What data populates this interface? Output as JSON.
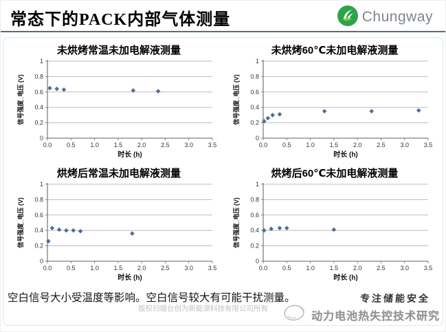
{
  "header": {
    "title": "常态下的PACK内部气体测量",
    "brand": "Chungway"
  },
  "footer": {
    "note": "空白信号大小受温度等影响。空白信号较大有可能干扰测量。",
    "copyright": "版权归烟台创为新能源科技有限公司所有",
    "slogan": "专注储能安全",
    "research_title": "动力电池热失控技术研究"
  },
  "colors": {
    "brand_green": "#2ea44a",
    "brand_leaf_light": "#8dc63f",
    "brand_text_gray": "#7e858f",
    "header_divider": "#4e6e80",
    "marker_blue": "#4f6d96",
    "grid_line": "#bdbdbd",
    "axis_line": "#7f7f7f",
    "panel_border": "#dde7eb"
  },
  "chart_data": [
    {
      "type": "scatter",
      "title": "未烘烤常温未加电解液测量",
      "xlabel": "时长 (h)",
      "ylabel": "信号强度_电压 (V)",
      "xlim": [
        0,
        3.5
      ],
      "ylim": [
        0,
        1
      ],
      "xticks": [
        0,
        0.5,
        1.0,
        1.5,
        2.0,
        2.5,
        3.0,
        3.5
      ],
      "yticks": [
        0,
        0.2,
        0.4,
        0.6,
        0.8,
        1
      ],
      "grid": "horizontal",
      "legend": "none",
      "points": [
        [
          0.05,
          0.65
        ],
        [
          0.2,
          0.64
        ],
        [
          0.35,
          0.63
        ],
        [
          1.82,
          0.62
        ],
        [
          2.35,
          0.61
        ]
      ]
    },
    {
      "type": "scatter",
      "title": "未烘烤60℃未加电解液测量",
      "xlabel": "时长 (h)",
      "ylabel": "信号强度_电压 (V)",
      "xlim": [
        0,
        3.5
      ],
      "ylim": [
        0,
        1
      ],
      "xticks": [
        0,
        0.5,
        1.0,
        1.5,
        2.0,
        2.5,
        3.0,
        3.5
      ],
      "yticks": [
        0,
        0.2,
        0.4,
        0.6,
        0.8,
        1
      ],
      "grid": "horizontal",
      "legend": "none",
      "points": [
        [
          0.02,
          0.22
        ],
        [
          0.1,
          0.26
        ],
        [
          0.2,
          0.3
        ],
        [
          0.35,
          0.31
        ],
        [
          1.3,
          0.35
        ],
        [
          2.3,
          0.35
        ],
        [
          3.3,
          0.36
        ]
      ]
    },
    {
      "type": "scatter",
      "title": "烘烤后常温未加电解液测量",
      "xlabel": "时长 (h)",
      "ylabel": "信号强度_电压 (V)",
      "xlim": [
        0,
        3.5
      ],
      "ylim": [
        0,
        1
      ],
      "xticks": [
        0,
        0.5,
        1.0,
        1.5,
        2.0,
        2.5,
        3.0,
        3.5
      ],
      "yticks": [
        0,
        0.2,
        0.4,
        0.6,
        0.8,
        1
      ],
      "grid": "horizontal",
      "legend": "none",
      "points": [
        [
          0.02,
          0.26
        ],
        [
          0.1,
          0.43
        ],
        [
          0.25,
          0.41
        ],
        [
          0.4,
          0.4
        ],
        [
          0.55,
          0.4
        ],
        [
          0.7,
          0.39
        ],
        [
          1.8,
          0.36
        ]
      ]
    },
    {
      "type": "scatter",
      "title": "烘烤后60℃未加电解液测量",
      "xlabel": "时长 (h)",
      "ylabel": "信号强度_电压 (V)",
      "xlim": [
        0,
        3.5
      ],
      "ylim": [
        0,
        1
      ],
      "xticks": [
        0,
        0.5,
        1.0,
        1.5,
        2.0,
        2.5,
        3.0,
        3.5
      ],
      "yticks": [
        0,
        0.2,
        0.4,
        0.6,
        0.8,
        1
      ],
      "grid": "horizontal",
      "legend": "none",
      "points": [
        [
          0.02,
          0.4
        ],
        [
          0.17,
          0.42
        ],
        [
          0.35,
          0.43
        ],
        [
          0.5,
          0.43
        ],
        [
          1.5,
          0.41
        ]
      ]
    }
  ]
}
